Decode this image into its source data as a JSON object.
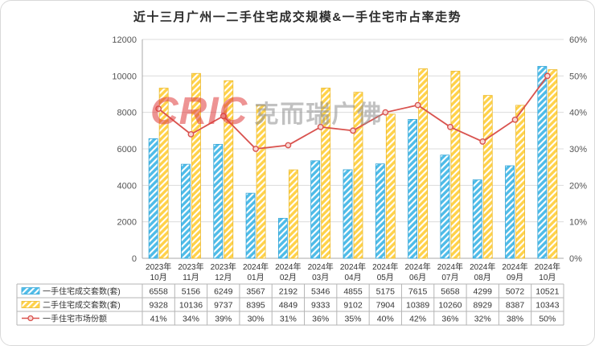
{
  "title": "近十三月广州一二手住宅成交规模&一手住宅市占率走势",
  "watermark": {
    "logo": "CRIC",
    "text": "克而瑞广佛"
  },
  "chart_data": {
    "type": "bar+line",
    "title": "近十三月广州一二手住宅成交规模&一手住宅市占率走势",
    "categories": [
      "2023年10月",
      "2023年11月",
      "2023年12月",
      "2024年01月",
      "2024年02月",
      "2024年03月",
      "2024年04月",
      "2024年05月",
      "2024年06月",
      "2024年07月",
      "2024年08月",
      "2024年09月",
      "2024年10月"
    ],
    "series": [
      {
        "name": "一手住宅成交套数(套)",
        "type": "bar",
        "axis": "left",
        "color": "#4fbce8",
        "stroke": "#2fa3d6",
        "values": [
          6558,
          5156,
          6249,
          3567,
          2192,
          5346,
          4855,
          5175,
          7615,
          5658,
          4299,
          5072,
          10521
        ]
      },
      {
        "name": "二手住宅成交套数(套)",
        "type": "bar",
        "axis": "left",
        "color": "#ffd24a",
        "stroke": "#ecb92a",
        "values": [
          9328,
          10136,
          9737,
          8395,
          4849,
          9333,
          9102,
          7904,
          10389,
          10260,
          8929,
          8387,
          10343
        ]
      },
      {
        "name": "一手住宅市场份额",
        "type": "line",
        "axis": "right",
        "color": "#d9534f",
        "unit": "%",
        "values": [
          41,
          34,
          39,
          30,
          31,
          36,
          35,
          40,
          42,
          36,
          32,
          38,
          50
        ]
      }
    ],
    "left_axis": {
      "min": 0,
      "max": 12000,
      "step": 2000,
      "ticks": [
        "0",
        "2000",
        "4000",
        "6000",
        "8000",
        "10000",
        "12000"
      ]
    },
    "right_axis": {
      "min": 0,
      "max": 60,
      "step": 10,
      "ticks": [
        "0%",
        "10%",
        "20%",
        "30%",
        "40%",
        "50%",
        "60%"
      ]
    },
    "grid": true,
    "legend_position": "table-bottom",
    "grid_color": "#dcdcdc",
    "axis_color": "#a8a8a8",
    "text_color": "#333333",
    "table_border_color": "#b5b5b5"
  }
}
